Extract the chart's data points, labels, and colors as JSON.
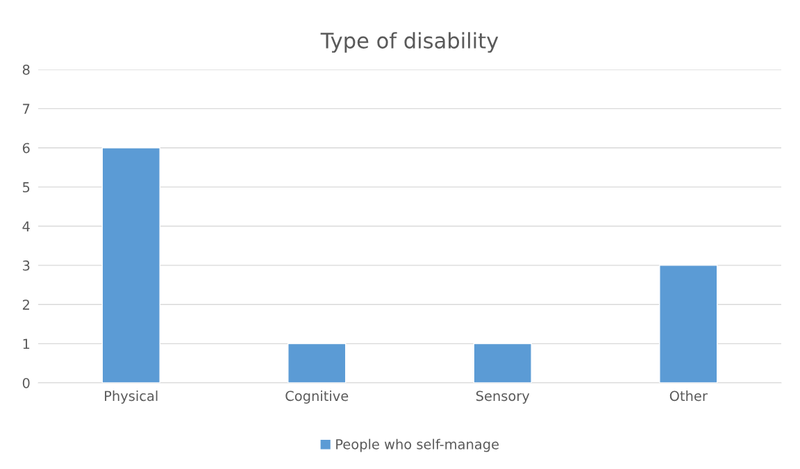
{
  "chart_data": {
    "type": "bar",
    "title": "Type of disability",
    "categories": [
      "Physical",
      "Cognitive",
      "Sensory",
      "Other"
    ],
    "series": [
      {
        "name": "People who self-manage",
        "color": "#5b9bd5",
        "values": [
          6,
          1,
          1,
          3
        ]
      }
    ],
    "ylim": [
      0,
      8
    ],
    "yticks": [
      0,
      1,
      2,
      3,
      4,
      5,
      6,
      7,
      8
    ],
    "grid": "y",
    "legend": "bottom"
  }
}
